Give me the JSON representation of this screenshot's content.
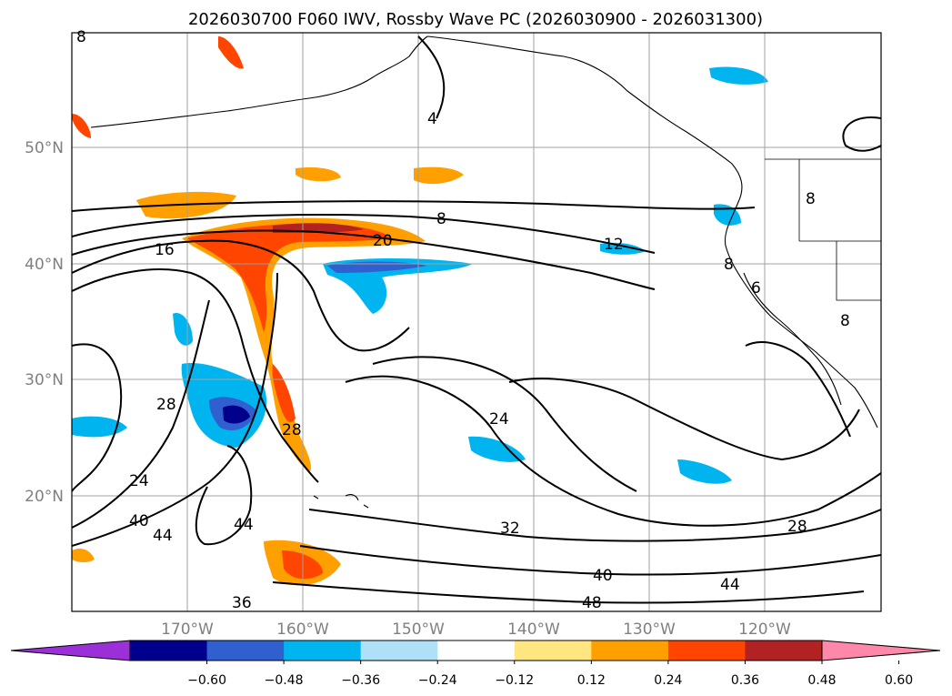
{
  "title": "2026030700 F060 IWV, Rossby Wave PC (2026030900 - 2026031300)",
  "map": {
    "lat_labels": [
      "50°N",
      "40°N",
      "30°N",
      "20°N"
    ],
    "lon_labels": [
      "170°W",
      "160°W",
      "150°W",
      "140°W",
      "130°W",
      "120°W"
    ],
    "grid": true,
    "colors": {
      "ocean": "#ffffff",
      "contour": "#000000",
      "grid": "#a0a0a0"
    }
  },
  "contour_labels": [
    "4",
    "8",
    "8",
    "12",
    "16",
    "20",
    "24",
    "24",
    "28",
    "28",
    "32",
    "36",
    "40",
    "40",
    "44",
    "44",
    "44",
    "48",
    "6",
    "8",
    "8",
    "8",
    "28"
  ],
  "colorbar": {
    "ticks": [
      "−0.60",
      "−0.48",
      "−0.36",
      "−0.24",
      "−0.12",
      "0.12",
      "0.24",
      "0.36",
      "0.48",
      "0.60"
    ],
    "colors": [
      "#9b30d9",
      "#00008c",
      "#3060d0",
      "#00b4f0",
      "#aee0f8",
      "#ffffff",
      "#ffe680",
      "#ffa000",
      "#ff4500",
      "#b22222",
      "#ff88aa"
    ]
  }
}
